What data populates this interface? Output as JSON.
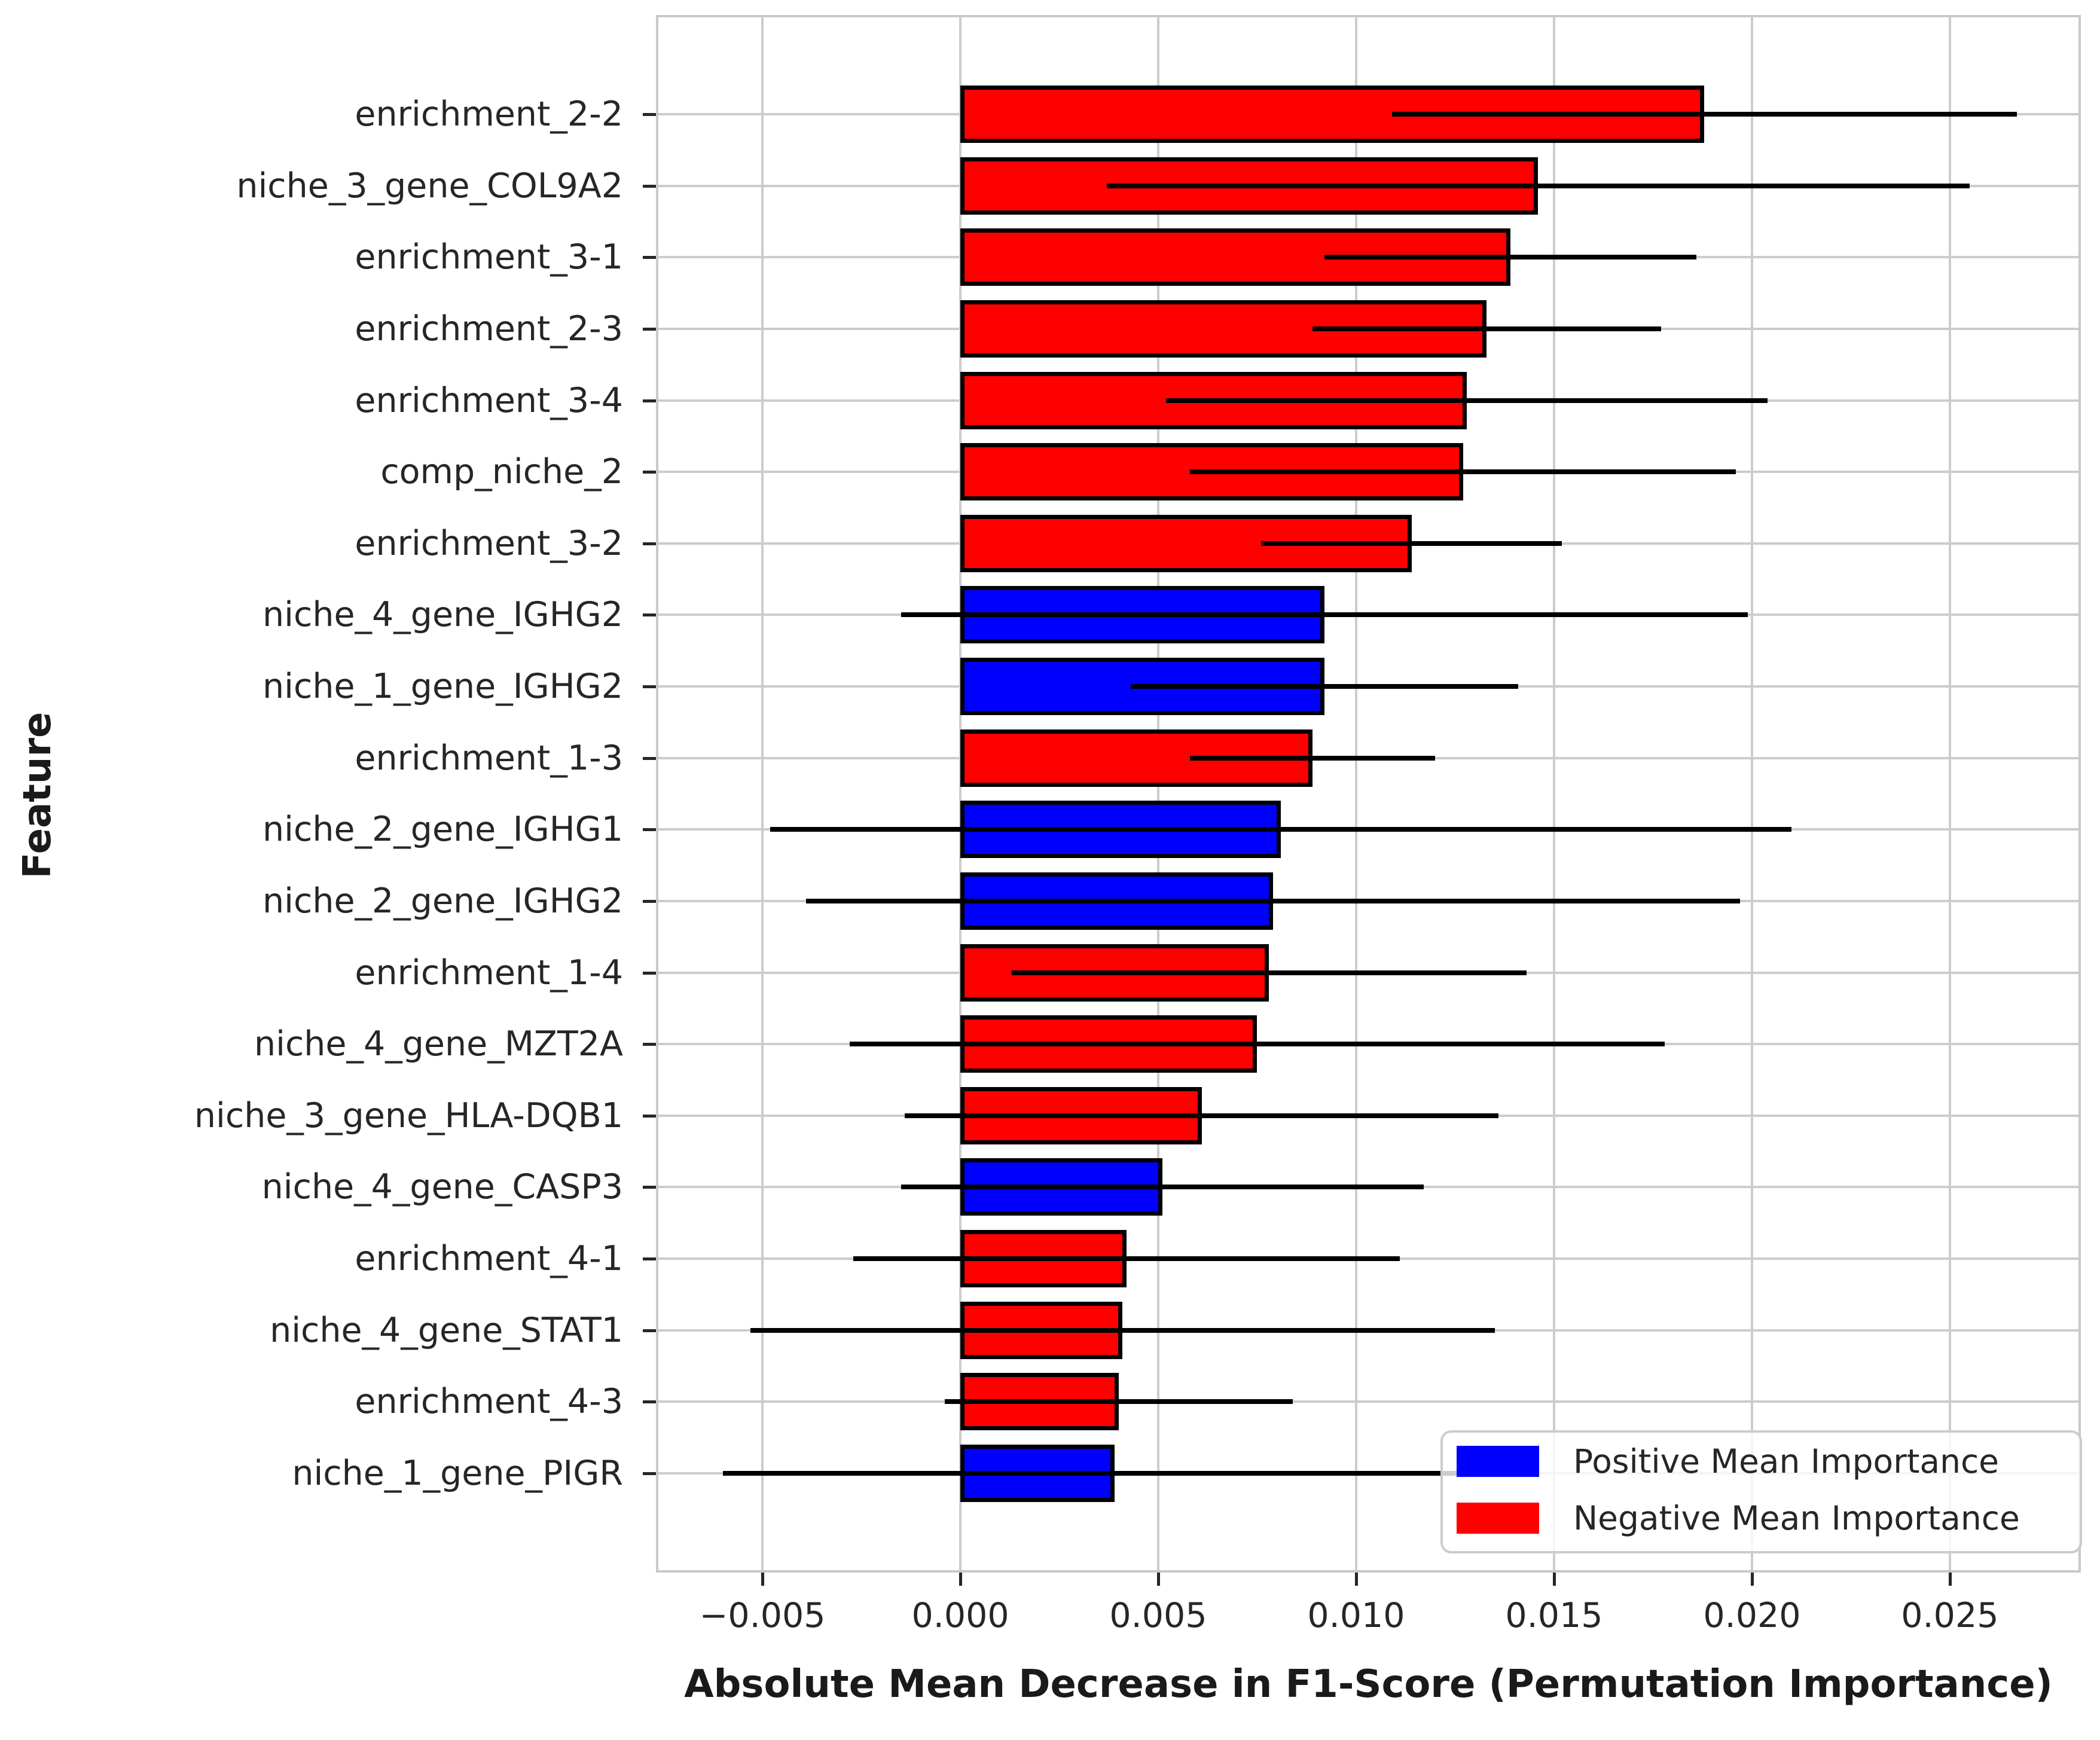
{
  "chart_data": {
    "type": "bar",
    "orientation": "horizontal",
    "title": "",
    "xlabel": "Absolute Mean Decrease in F1-Score (Permutation Importance)",
    "ylabel": "Feature",
    "xlim": [
      -0.00769,
      0.02831
    ],
    "grid": true,
    "legend_position": "lower right",
    "colors": {
      "positive": "#0000ff",
      "negative": "#ff0000",
      "error_bar": "#000000",
      "bar_edge": "#000000"
    },
    "xticks": [
      {
        "value": -0.005,
        "label": "−0.005"
      },
      {
        "value": 0.0,
        "label": "0.000"
      },
      {
        "value": 0.005,
        "label": "0.005"
      },
      {
        "value": 0.01,
        "label": "0.010"
      },
      {
        "value": 0.015,
        "label": "0.015"
      },
      {
        "value": 0.02,
        "label": "0.020"
      },
      {
        "value": 0.025,
        "label": "0.025"
      }
    ],
    "features": [
      {
        "name": "enrichment_2-2",
        "value": 0.0188,
        "error": 0.0079,
        "direction": "negative"
      },
      {
        "name": "niche_3_gene_COL9A2",
        "value": 0.0146,
        "error": 0.0109,
        "direction": "negative"
      },
      {
        "name": "enrichment_3-1",
        "value": 0.0139,
        "error": 0.0047,
        "direction": "negative"
      },
      {
        "name": "enrichment_2-3",
        "value": 0.0133,
        "error": 0.0044,
        "direction": "negative"
      },
      {
        "name": "enrichment_3-4",
        "value": 0.0128,
        "error": 0.0076,
        "direction": "negative"
      },
      {
        "name": "comp_niche_2",
        "value": 0.0127,
        "error": 0.0069,
        "direction": "negative"
      },
      {
        "name": "enrichment_3-2",
        "value": 0.0114,
        "error": 0.0038,
        "direction": "negative"
      },
      {
        "name": "niche_4_gene_IGHG2",
        "value": 0.0092,
        "error": 0.0107,
        "direction": "positive"
      },
      {
        "name": "niche_1_gene_IGHG2",
        "value": 0.0092,
        "error": 0.0049,
        "direction": "positive"
      },
      {
        "name": "enrichment_1-3",
        "value": 0.0089,
        "error": 0.0031,
        "direction": "negative"
      },
      {
        "name": "niche_2_gene_IGHG1",
        "value": 0.0081,
        "error": 0.0129,
        "direction": "positive"
      },
      {
        "name": "niche_2_gene_IGHG2",
        "value": 0.0079,
        "error": 0.0118,
        "direction": "positive"
      },
      {
        "name": "enrichment_1-4",
        "value": 0.0078,
        "error": 0.0065,
        "direction": "negative"
      },
      {
        "name": "niche_4_gene_MZT2A",
        "value": 0.0075,
        "error": 0.0103,
        "direction": "negative"
      },
      {
        "name": "niche_3_gene_HLA-DQB1",
        "value": 0.0061,
        "error": 0.0075,
        "direction": "negative"
      },
      {
        "name": "niche_4_gene_CASP3",
        "value": 0.0051,
        "error": 0.0066,
        "direction": "positive"
      },
      {
        "name": "enrichment_4-1",
        "value": 0.0042,
        "error": 0.0069,
        "direction": "negative"
      },
      {
        "name": "niche_4_gene_STAT1",
        "value": 0.0041,
        "error": 0.0094,
        "direction": "negative"
      },
      {
        "name": "enrichment_4-3",
        "value": 0.004,
        "error": 0.0044,
        "direction": "negative"
      },
      {
        "name": "niche_1_gene_PIGR",
        "value": 0.0039,
        "error": 0.0099,
        "direction": "positive"
      }
    ],
    "legend": [
      {
        "key": "positive",
        "label": "Positive Mean Importance"
      },
      {
        "key": "negative",
        "label": "Negative Mean Importance"
      }
    ]
  }
}
